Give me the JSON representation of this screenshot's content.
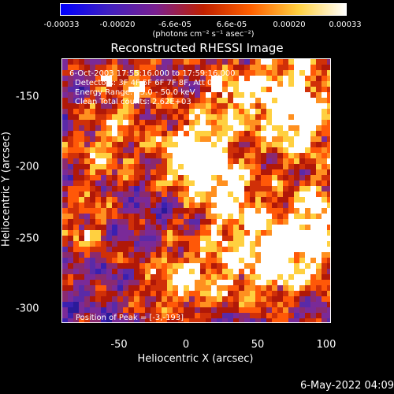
{
  "colorbar": {
    "ticks": [
      "-0.00033",
      "-0.00020",
      "-6.6e-05",
      "6.6e-05",
      "0.00020",
      "0.00033"
    ],
    "values": [
      -0.00033,
      -0.0002,
      -6.6e-05,
      6.6e-05,
      0.0002,
      0.00033
    ],
    "range": [
      -0.00033,
      0.00033
    ],
    "units": "(photons cm⁻² s⁻¹ asec⁻²)"
  },
  "chart_data": {
    "type": "heatmap",
    "title": "Reconstructed RHESSI Image",
    "xlabel": "Heliocentric X (arcsec)",
    "ylabel": "Heliocentric Y (arcsec)",
    "xlim": [
      -92,
      100
    ],
    "ylim": [
      -313,
      -128
    ],
    "xticks": [
      -50,
      0,
      50,
      100
    ],
    "yticks": [
      -150,
      -200,
      -250,
      -300
    ],
    "annotations": {
      "time": "6-Oct-2003 17:55:16.000 to 17:59:16.000",
      "detectors": "Detectors: 3F 4F 5F 6F 7F 8F, Att 0",
      "energy": "Energy Range: 25.0 - 50.0 keV",
      "clean": "Clean    Total counts: 2.62E+03",
      "peak": "Position of Peak = [-3,-193]"
    },
    "peak": [
      -3,
      -193
    ],
    "colors": [
      "#0000ff",
      "#4020c0",
      "#7a2090",
      "#c02000",
      "#ff6000",
      "#ffd040",
      "#ffffff"
    ]
  },
  "footer": "6-May-2022 04:09"
}
